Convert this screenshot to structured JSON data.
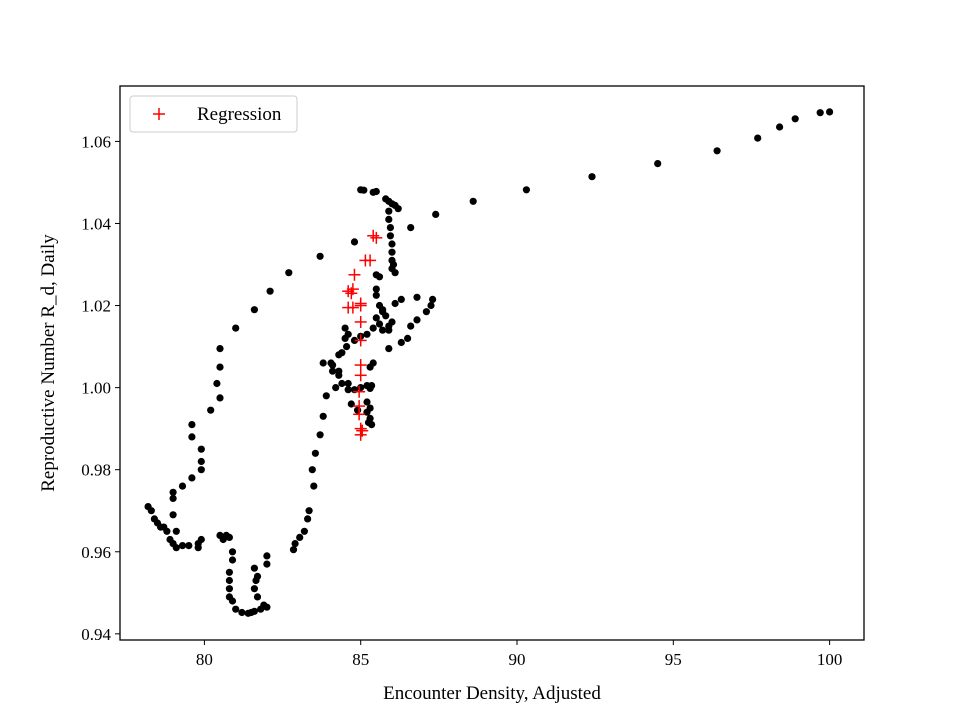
{
  "chart_data": {
    "type": "scatter",
    "xlabel": "Encounter Density, Adjusted",
    "ylabel": "Reproductive Number R_d, Daily",
    "xlim": [
      77.3,
      101.1
    ],
    "ylim": [
      0.9385,
      1.0735
    ],
    "xticks": [
      "80",
      "85",
      "90",
      "95",
      "100"
    ],
    "yticks": [
      "0.94",
      "0.96",
      "0.98",
      "1.00",
      "1.02",
      "1.04",
      "1.06"
    ],
    "legend": {
      "placement": "upper-left",
      "entries": [
        "Regression"
      ]
    },
    "colors": {
      "observed": "#000000",
      "regression": "#ff0000"
    },
    "series": [
      {
        "marker": "dot",
        "points": [
          [
            100.0,
            1.0672
          ],
          [
            99.7,
            1.067
          ],
          [
            98.9,
            1.0655
          ],
          [
            98.4,
            1.0635
          ],
          [
            97.7,
            1.0608
          ],
          [
            96.4,
            1.0577
          ],
          [
            94.5,
            1.0546
          ],
          [
            92.4,
            1.0514
          ],
          [
            90.3,
            1.0482
          ],
          [
            88.6,
            1.0454
          ],
          [
            87.4,
            1.0422
          ],
          [
            86.6,
            1.039
          ],
          [
            86.2,
            1.0436
          ],
          [
            86.1,
            1.0444
          ],
          [
            86.0,
            1.0448
          ],
          [
            85.9,
            1.0454
          ],
          [
            85.8,
            1.046
          ],
          [
            85.5,
            1.0478
          ],
          [
            85.4,
            1.0476
          ],
          [
            85.1,
            1.0481
          ],
          [
            85.0,
            1.0482
          ],
          [
            85.9,
            1.043
          ],
          [
            85.9,
            1.041
          ],
          [
            85.95,
            1.039
          ],
          [
            85.95,
            1.037
          ],
          [
            86.0,
            1.035
          ],
          [
            86.0,
            1.033
          ],
          [
            86.0,
            1.031
          ],
          [
            86.0,
            1.029
          ],
          [
            86.1,
            1.028
          ],
          [
            86.05,
            1.03
          ],
          [
            85.5,
            1.0275
          ],
          [
            85.6,
            1.027
          ],
          [
            85.5,
            1.024
          ],
          [
            85.5,
            1.0225
          ],
          [
            85.6,
            1.02
          ],
          [
            86.1,
            1.0205
          ],
          [
            86.3,
            1.0215
          ],
          [
            85.7,
            1.0185
          ],
          [
            85.5,
            1.017
          ],
          [
            85.6,
            1.0155
          ],
          [
            85.9,
            1.015
          ],
          [
            85.7,
            1.014
          ],
          [
            85.4,
            1.0145
          ],
          [
            85.2,
            1.013
          ],
          [
            85.0,
            1.0125
          ],
          [
            84.8,
            1.0115
          ],
          [
            84.6,
            1.013
          ],
          [
            84.5,
            1.012
          ],
          [
            84.55,
            1.01
          ],
          [
            84.4,
            1.0085
          ],
          [
            84.3,
            1.004
          ],
          [
            84.2,
            1.0
          ],
          [
            84.6,
            0.9995
          ],
          [
            84.8,
            0.9995
          ],
          [
            85.0,
            1.0
          ],
          [
            85.2,
            1.0005
          ],
          [
            85.3,
            0.9998
          ],
          [
            85.35,
            1.0005
          ],
          [
            85.3,
            1.005
          ],
          [
            85.2,
            0.9965
          ],
          [
            85.3,
            0.995
          ],
          [
            85.2,
            0.994
          ],
          [
            85.3,
            0.9925
          ],
          [
            85.35,
            0.991
          ],
          [
            85.25,
            0.9915
          ],
          [
            84.9,
            0.9945
          ],
          [
            84.7,
            0.996
          ],
          [
            84.6,
            1.001
          ],
          [
            84.4,
            1.001
          ],
          [
            84.3,
            1.003
          ],
          [
            84.1,
            1.004
          ],
          [
            84.05,
            1.006
          ],
          [
            84.3,
            1.008
          ],
          [
            84.1,
            1.0055
          ],
          [
            84.5,
            1.0145
          ],
          [
            86.8,
            1.022
          ],
          [
            87.3,
            1.0215
          ],
          [
            87.25,
            1.02
          ],
          [
            87.1,
            1.0185
          ],
          [
            86.8,
            1.0165
          ],
          [
            86.6,
            1.015
          ],
          [
            86.5,
            1.012
          ],
          [
            86.3,
            1.011
          ],
          [
            85.9,
            1.0095
          ],
          [
            85.4,
            1.006
          ],
          [
            85.9,
            1.014
          ],
          [
            86.0,
            1.016
          ],
          [
            85.8,
            1.0175
          ],
          [
            85.7,
            1.019
          ],
          [
            83.9,
            0.998
          ],
          [
            83.8,
            0.993
          ],
          [
            83.7,
            0.9885
          ],
          [
            83.55,
            0.984
          ],
          [
            83.45,
            0.98
          ],
          [
            83.5,
            0.976
          ],
          [
            83.35,
            0.97
          ],
          [
            83.3,
            0.968
          ],
          [
            83.2,
            0.965
          ],
          [
            83.05,
            0.9635
          ],
          [
            82.9,
            0.962
          ],
          [
            82.85,
            0.9605
          ],
          [
            83.8,
            1.006
          ],
          [
            81.2,
            0.9452
          ],
          [
            81.4,
            0.945
          ],
          [
            81.5,
            0.9452
          ],
          [
            81.6,
            0.9455
          ],
          [
            81.8,
            0.946
          ],
          [
            81.9,
            0.947
          ],
          [
            82.0,
            0.9465
          ],
          [
            81.7,
            0.949
          ],
          [
            81.6,
            0.951
          ],
          [
            81.65,
            0.953
          ],
          [
            81.7,
            0.954
          ],
          [
            81.6,
            0.956
          ],
          [
            82.0,
            0.959
          ],
          [
            82.0,
            0.957
          ],
          [
            81.0,
            0.946
          ],
          [
            80.9,
            0.948
          ],
          [
            80.8,
            0.949
          ],
          [
            80.8,
            0.951
          ],
          [
            80.8,
            0.953
          ],
          [
            80.8,
            0.955
          ],
          [
            80.9,
            0.958
          ],
          [
            80.9,
            0.96
          ],
          [
            80.6,
            0.963
          ],
          [
            80.7,
            0.964
          ],
          [
            80.8,
            0.9635
          ],
          [
            80.5,
            0.964
          ],
          [
            79.9,
            0.963
          ],
          [
            79.8,
            0.961
          ],
          [
            79.8,
            0.962
          ],
          [
            79.5,
            0.9615
          ],
          [
            79.3,
            0.9615
          ],
          [
            79.1,
            0.961
          ],
          [
            79.0,
            0.962
          ],
          [
            78.9,
            0.963
          ],
          [
            78.8,
            0.965
          ],
          [
            78.7,
            0.966
          ],
          [
            78.6,
            0.966
          ],
          [
            78.5,
            0.967
          ],
          [
            78.4,
            0.968
          ],
          [
            78.3,
            0.97
          ],
          [
            78.2,
            0.971
          ],
          [
            79.1,
            0.965
          ],
          [
            79.0,
            0.969
          ],
          [
            79.0,
            0.973
          ],
          [
            79.0,
            0.9745
          ],
          [
            79.3,
            0.976
          ],
          [
            79.6,
            0.978
          ],
          [
            79.9,
            0.98
          ],
          [
            79.9,
            0.982
          ],
          [
            79.9,
            0.985
          ],
          [
            79.6,
            0.988
          ],
          [
            79.6,
            0.991
          ],
          [
            80.2,
            0.9945
          ],
          [
            80.5,
            0.9975
          ],
          [
            80.4,
            1.001
          ],
          [
            80.5,
            1.005
          ],
          [
            80.5,
            1.0095
          ],
          [
            81.0,
            1.0145
          ],
          [
            81.6,
            1.019
          ],
          [
            82.1,
            1.0235
          ],
          [
            82.7,
            1.028
          ],
          [
            83.7,
            1.032
          ],
          [
            84.8,
            1.0355
          ]
        ]
      },
      {
        "name": "Regression",
        "marker": "plus",
        "points": [
          [
            85.4,
            1.037
          ],
          [
            85.5,
            1.0365
          ],
          [
            85.15,
            1.031
          ],
          [
            85.3,
            1.031
          ],
          [
            84.8,
            1.0275
          ],
          [
            84.6,
            1.0235
          ],
          [
            84.75,
            1.024
          ],
          [
            84.7,
            1.023
          ],
          [
            85.0,
            1.0205
          ],
          [
            85.0,
            1.02
          ],
          [
            84.6,
            1.0195
          ],
          [
            84.75,
            1.0195
          ],
          [
            85.0,
            1.016
          ],
          [
            85.0,
            1.0115
          ],
          [
            85.0,
            1.0055
          ],
          [
            85.0,
            1.003
          ],
          [
            84.95,
            0.999
          ],
          [
            84.95,
            0.9955
          ],
          [
            84.95,
            0.9935
          ],
          [
            85.0,
            0.99
          ],
          [
            85.05,
            0.9895
          ],
          [
            85.0,
            0.9885
          ]
        ]
      }
    ]
  }
}
